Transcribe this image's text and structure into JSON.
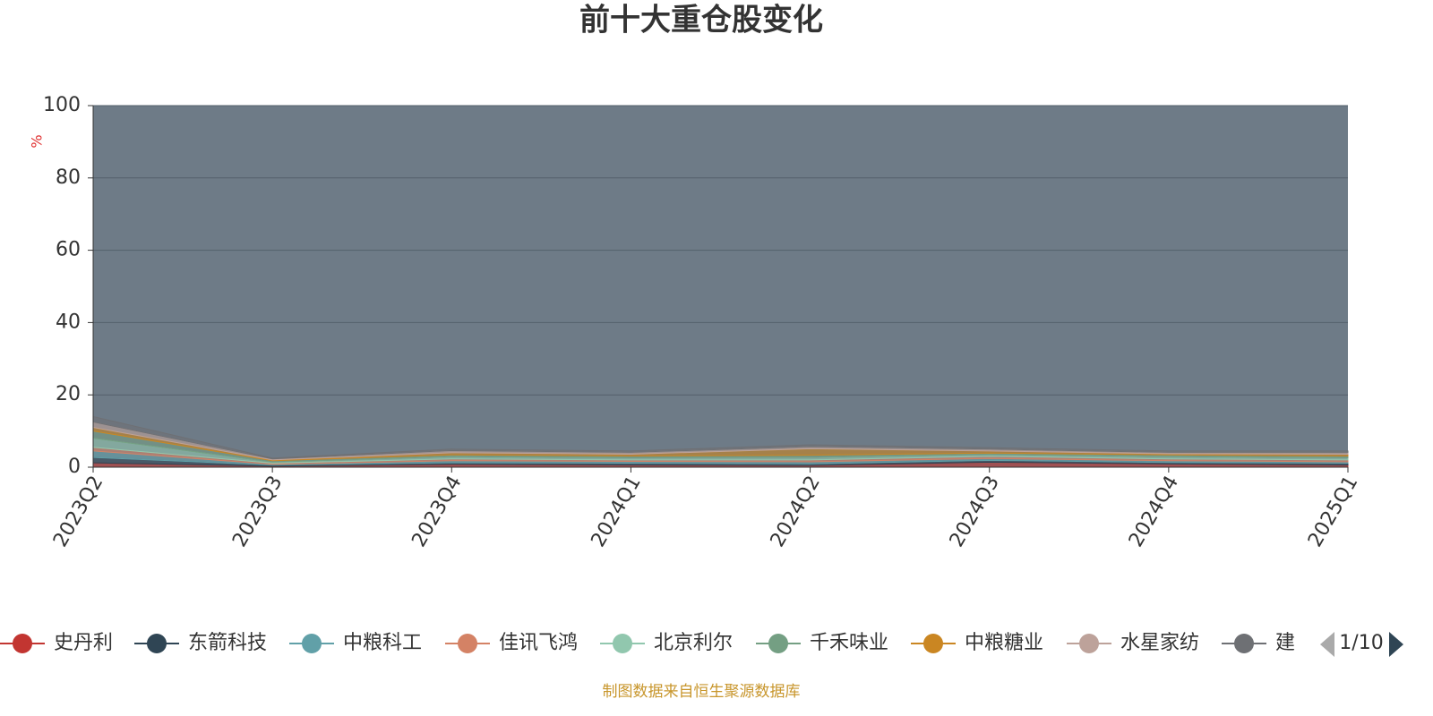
{
  "chart_data": {
    "type": "stacked-area",
    "title": "前十大重仓股变化",
    "y_label": "%",
    "categories": [
      "2023Q2",
      "2023Q3",
      "2023Q4",
      "2024Q1",
      "2024Q2",
      "2024Q3",
      "2024Q4",
      "2025Q1"
    ],
    "ylim": [
      0,
      100
    ],
    "yticks": [
      0,
      20,
      40,
      60,
      80,
      100
    ],
    "grid": true,
    "series": [
      {
        "name": "史丹利",
        "color": "#c23531",
        "values": [
          1.2,
          0.3,
          0.8,
          0.6,
          0.5,
          1.4,
          0.9,
          0.6
        ]
      },
      {
        "name": "东箭科技",
        "color": "#2f4554",
        "values": [
          1.5,
          0.3,
          0.4,
          0.5,
          0.4,
          0.5,
          0.4,
          0.5
        ]
      },
      {
        "name": "中粮科工",
        "color": "#61a0a8",
        "values": [
          1.8,
          0.2,
          0.6,
          0.5,
          0.6,
          0.5,
          0.5,
          0.4
        ]
      },
      {
        "name": "佳讯飞鸿",
        "color": "#d48265",
        "values": [
          1.0,
          0.3,
          0.5,
          0.4,
          0.5,
          0.6,
          0.5,
          0.5
        ]
      },
      {
        "name": "北京利尔",
        "color": "#91c7ae",
        "values": [
          2.5,
          0.3,
          0.6,
          0.6,
          0.7,
          0.5,
          0.6,
          0.6
        ]
      },
      {
        "name": "千禾味业",
        "color": "#749f83",
        "values": [
          2.0,
          0.4,
          0.5,
          0.5,
          0.6,
          0.4,
          0.5,
          0.5
        ]
      },
      {
        "name": "中粮糖业",
        "color": "#ca8622",
        "values": [
          1.0,
          0.2,
          0.6,
          0.5,
          1.8,
          0.6,
          0.3,
          0.5
        ]
      },
      {
        "name": "水星家纺",
        "color": "#bda29a",
        "values": [
          1.5,
          0.3,
          0.6,
          0.5,
          0.6,
          0.5,
          0.4,
          0.5
        ]
      },
      {
        "name": "建",
        "color": "#6e7074",
        "values": [
          1.5,
          0.2,
          0.4,
          0.4,
          0.5,
          0.4,
          0.4,
          0.4
        ]
      }
    ],
    "legend_page": "1/10",
    "source": "制图数据来自恒生聚源数据库"
  }
}
